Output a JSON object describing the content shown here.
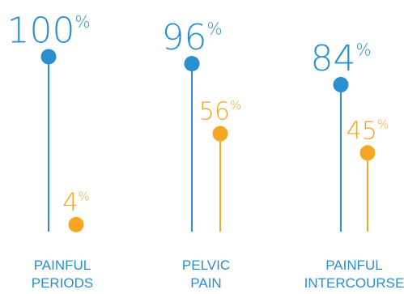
{
  "chart_data": {
    "type": "lollipop",
    "categories": [
      {
        "line1": "PAINFUL",
        "line2": "PERIODS"
      },
      {
        "line1": "PELVIC",
        "line2": "PAIN"
      },
      {
        "line1": "PAINFUL",
        "line2": "INTERCOURSE"
      }
    ],
    "series": [
      {
        "color": "#2b8fcf",
        "values": [
          100,
          96,
          84
        ],
        "labels": [
          "100",
          "96",
          "84"
        ]
      },
      {
        "color": "#f5a623",
        "values": [
          4,
          56,
          45
        ],
        "labels": [
          "4",
          "56",
          "45"
        ]
      }
    ],
    "unit_suffix": "%",
    "ylim": [
      0,
      100
    ]
  }
}
